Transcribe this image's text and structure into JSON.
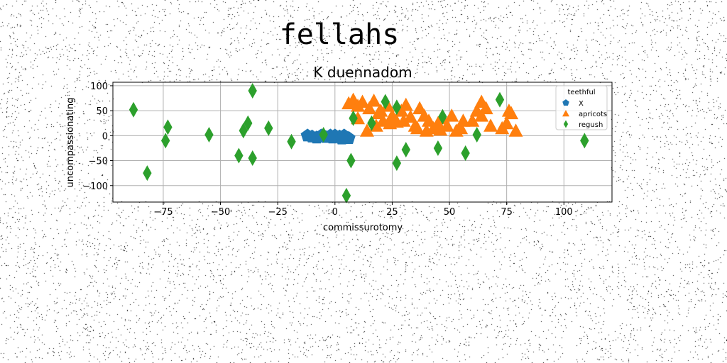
{
  "chart_data": {
    "type": "scatter",
    "suptitle": "fellahs",
    "title": "K duennadom",
    "xlabel": "commissurotomy",
    "ylabel": "uncompassionating",
    "xlim": [
      -97,
      121
    ],
    "ylim": [
      -133,
      107
    ],
    "xticks": [
      -75,
      -50,
      -25,
      0,
      25,
      50,
      75,
      100
    ],
    "yticks": [
      -100,
      -50,
      0,
      50,
      100
    ],
    "grid": true,
    "legend": {
      "title": "teethful",
      "position": "top-right"
    },
    "series": [
      {
        "name": "X",
        "marker": "pentagon",
        "color": "#1f77b4",
        "points": [
          [
            -12,
            0
          ],
          [
            -10,
            -2
          ],
          [
            -8,
            -4
          ],
          [
            -6,
            0
          ],
          [
            -4,
            -3
          ],
          [
            -2,
            0
          ],
          [
            0,
            0
          ],
          [
            2,
            -2
          ],
          [
            4,
            0
          ],
          [
            6,
            -5
          ],
          [
            -1,
            -4
          ],
          [
            3,
            -6
          ]
        ]
      },
      {
        "name": "apricots",
        "marker": "triangle",
        "color": "#ff7f0e",
        "points": [
          [
            6,
            65
          ],
          [
            8,
            72
          ],
          [
            10,
            60
          ],
          [
            12,
            68
          ],
          [
            15,
            55
          ],
          [
            17,
            70
          ],
          [
            19,
            45
          ],
          [
            21,
            30
          ],
          [
            23,
            60
          ],
          [
            25,
            40
          ],
          [
            27,
            28
          ],
          [
            29,
            50
          ],
          [
            31,
            62
          ],
          [
            33,
            38
          ],
          [
            35,
            20
          ],
          [
            37,
            55
          ],
          [
            39,
            40
          ],
          [
            41,
            30
          ],
          [
            43,
            15
          ],
          [
            45,
            25
          ],
          [
            47,
            35
          ],
          [
            49,
            20
          ],
          [
            51,
            40
          ],
          [
            53,
            10
          ],
          [
            55,
            15
          ],
          [
            60,
            30
          ],
          [
            62,
            50
          ],
          [
            64,
            40
          ],
          [
            66,
            55
          ],
          [
            68,
            20
          ],
          [
            73,
            15
          ],
          [
            75,
            25
          ],
          [
            77,
            45
          ],
          [
            79,
            10
          ],
          [
            14,
            10
          ],
          [
            18,
            20
          ],
          [
            36,
            15
          ],
          [
            46,
            12
          ],
          [
            56,
            30
          ],
          [
            64,
            68
          ],
          [
            76,
            50
          ],
          [
            24,
            25
          ],
          [
            30,
            30
          ],
          [
            10,
            35
          ],
          [
            20,
            50
          ],
          [
            40,
            10
          ]
        ]
      },
      {
        "name": "regush",
        "marker": "diamond",
        "color": "#2ca02c",
        "points": [
          [
            -88,
            52
          ],
          [
            -82,
            -75
          ],
          [
            -74,
            -10
          ],
          [
            -73,
            17
          ],
          [
            -55,
            2
          ],
          [
            -42,
            -40
          ],
          [
            -40,
            10
          ],
          [
            -38,
            25
          ],
          [
            -36,
            90
          ],
          [
            -36,
            -45
          ],
          [
            -29,
            15
          ],
          [
            -19,
            -12
          ],
          [
            -5,
            2
          ],
          [
            5,
            -120
          ],
          [
            7,
            -50
          ],
          [
            8,
            35
          ],
          [
            16,
            25
          ],
          [
            22,
            68
          ],
          [
            27,
            -55
          ],
          [
            27,
            57
          ],
          [
            31,
            -28
          ],
          [
            45,
            -25
          ],
          [
            47,
            38
          ],
          [
            57,
            -35
          ],
          [
            62,
            2
          ],
          [
            72,
            72
          ],
          [
            109,
            -10
          ]
        ]
      }
    ]
  }
}
